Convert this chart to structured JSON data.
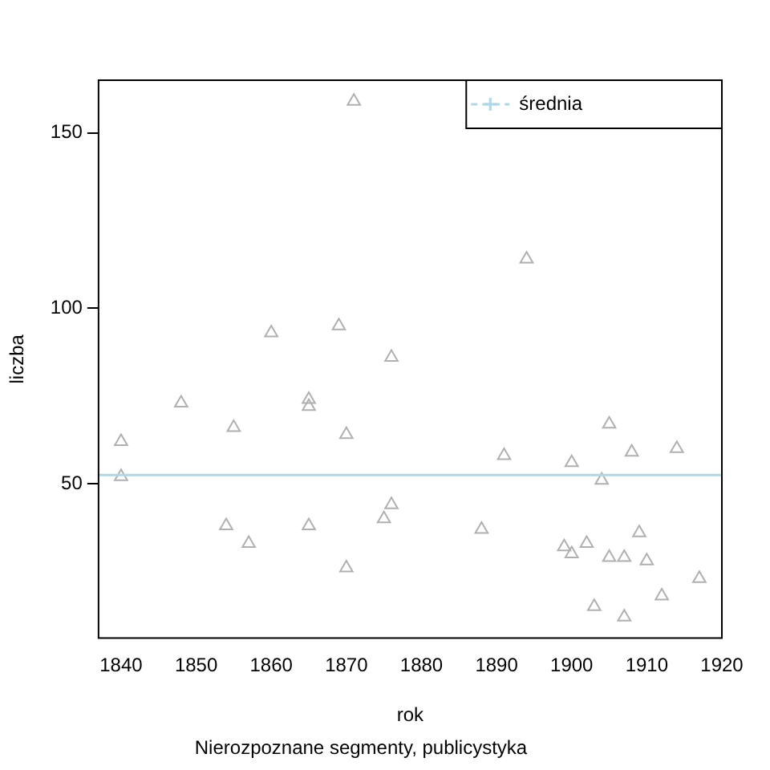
{
  "chart_data": {
    "type": "scatter",
    "xlabel": "rok",
    "ylabel": "liczba",
    "subtitle": "Nierozpoznane segmenty, publicystyka",
    "xlim": [
      1837,
      1920
    ],
    "xticks": [
      1840,
      1850,
      1860,
      1870,
      1880,
      1890,
      1900,
      1910,
      1920
    ],
    "ylim": [
      6,
      165
    ],
    "yticks": [
      50,
      100,
      150
    ],
    "grid": false,
    "legend": "top right",
    "marker": "triangle",
    "ref_lines": [
      {
        "axis": "y",
        "value": 52.5,
        "label": "średnia",
        "color": "#add8e6"
      }
    ],
    "series": [
      {
        "color": "#b0b0b0",
        "x": [
          1871,
          1860,
          1869,
          1876,
          1848,
          1865,
          1865,
          1855,
          1840,
          1870,
          1840,
          1876,
          1875,
          1854,
          1865,
          1857,
          1870,
          1894,
          1905,
          1891,
          1900,
          1908,
          1914,
          1904,
          1888,
          1899,
          1900,
          1902,
          1909,
          1905,
          1907,
          1910,
          1917,
          1912,
          1903,
          1907
        ],
        "values": [
          159,
          93,
          95,
          86,
          73,
          74,
          72,
          66,
          62,
          64,
          52,
          44,
          40,
          38,
          38,
          33,
          26,
          114,
          67,
          58,
          56,
          59,
          60,
          51,
          37,
          32,
          30,
          33,
          36,
          29,
          29,
          28,
          23,
          18,
          15,
          12
        ]
      }
    ]
  }
}
